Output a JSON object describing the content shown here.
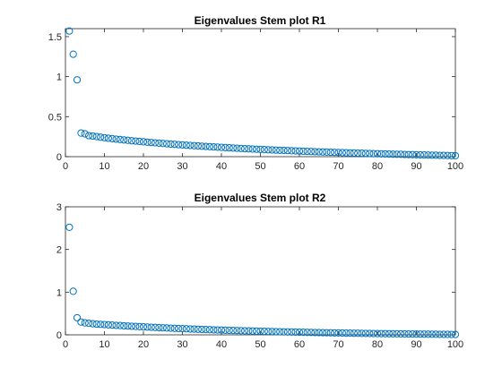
{
  "chart_data": [
    {
      "type": "scatter",
      "title": "Eigenvalues Stem plot R1",
      "xlabel": "",
      "ylabel": "",
      "xlim": [
        0,
        100
      ],
      "ylim": [
        0,
        1.6
      ],
      "xticks": [
        0,
        10,
        20,
        30,
        40,
        50,
        60,
        70,
        80,
        90,
        100
      ],
      "yticks": [
        0,
        0.5,
        1,
        1.5
      ],
      "ytick_labels": [
        "0",
        "0.5",
        "1",
        "1.5"
      ],
      "grid": false,
      "marker": "circle",
      "color": "#0072BD",
      "x": [
        1,
        2,
        3,
        4,
        5,
        6,
        7,
        8,
        9,
        10,
        11,
        12,
        13,
        14,
        15,
        16,
        17,
        18,
        19,
        20,
        21,
        22,
        23,
        24,
        25,
        26,
        27,
        28,
        29,
        30,
        31,
        32,
        33,
        34,
        35,
        36,
        37,
        38,
        39,
        40,
        41,
        42,
        43,
        44,
        45,
        46,
        47,
        48,
        49,
        50,
        51,
        52,
        53,
        54,
        55,
        56,
        57,
        58,
        59,
        60,
        61,
        62,
        63,
        64,
        65,
        66,
        67,
        68,
        69,
        70,
        71,
        72,
        73,
        74,
        75,
        76,
        77,
        78,
        79,
        80,
        81,
        82,
        83,
        84,
        85,
        86,
        87,
        88,
        89,
        90,
        91,
        92,
        93,
        94,
        95,
        96,
        97,
        98,
        99,
        100
      ],
      "y": [
        1.57,
        1.28,
        0.96,
        0.295,
        0.285,
        0.262,
        0.258,
        0.25,
        0.243,
        0.237,
        0.23,
        0.225,
        0.219,
        0.214,
        0.209,
        0.204,
        0.199,
        0.195,
        0.19,
        0.186,
        0.181,
        0.177,
        0.173,
        0.169,
        0.165,
        0.161,
        0.157,
        0.154,
        0.15,
        0.147,
        0.143,
        0.14,
        0.137,
        0.134,
        0.131,
        0.128,
        0.125,
        0.122,
        0.119,
        0.116,
        0.113,
        0.111,
        0.108,
        0.105,
        0.103,
        0.1,
        0.098,
        0.095,
        0.093,
        0.091,
        0.088,
        0.086,
        0.084,
        0.082,
        0.08,
        0.078,
        0.076,
        0.074,
        0.072,
        0.07,
        0.068,
        0.066,
        0.064,
        0.062,
        0.061,
        0.059,
        0.057,
        0.055,
        0.054,
        0.052,
        0.05,
        0.049,
        0.047,
        0.046,
        0.044,
        0.043,
        0.041,
        0.04,
        0.038,
        0.037,
        0.035,
        0.034,
        0.033,
        0.031,
        0.03,
        0.029,
        0.027,
        0.026,
        0.025,
        0.024,
        0.022,
        0.021,
        0.02,
        0.019,
        0.018,
        0.016,
        0.015,
        0.014,
        0.013,
        0.012
      ]
    },
    {
      "type": "scatter",
      "title": "Eigenvalues Stem plot R2",
      "xlabel": "",
      "ylabel": "",
      "xlim": [
        0,
        100
      ],
      "ylim": [
        0,
        3
      ],
      "xticks": [
        0,
        10,
        20,
        30,
        40,
        50,
        60,
        70,
        80,
        90,
        100
      ],
      "yticks": [
        0,
        1,
        2,
        3
      ],
      "ytick_labels": [
        "0",
        "1",
        "2",
        "3"
      ],
      "grid": false,
      "marker": "circle",
      "color": "#0072BD",
      "x": [
        1,
        2,
        3,
        4,
        5,
        6,
        7,
        8,
        9,
        10,
        11,
        12,
        13,
        14,
        15,
        16,
        17,
        18,
        19,
        20,
        21,
        22,
        23,
        24,
        25,
        26,
        27,
        28,
        29,
        30,
        31,
        32,
        33,
        34,
        35,
        36,
        37,
        38,
        39,
        40,
        41,
        42,
        43,
        44,
        45,
        46,
        47,
        48,
        49,
        50,
        51,
        52,
        53,
        54,
        55,
        56,
        57,
        58,
        59,
        60,
        61,
        62,
        63,
        64,
        65,
        66,
        67,
        68,
        69,
        70,
        71,
        72,
        73,
        74,
        75,
        76,
        77,
        78,
        79,
        80,
        81,
        82,
        83,
        84,
        85,
        86,
        87,
        88,
        89,
        90,
        91,
        92,
        93,
        94,
        95,
        96,
        97,
        98,
        99,
        100
      ],
      "y": [
        2.52,
        1.02,
        0.4,
        0.3,
        0.28,
        0.27,
        0.26,
        0.25,
        0.245,
        0.24,
        0.234,
        0.228,
        0.222,
        0.217,
        0.211,
        0.206,
        0.201,
        0.196,
        0.191,
        0.186,
        0.182,
        0.177,
        0.173,
        0.168,
        0.164,
        0.16,
        0.156,
        0.152,
        0.148,
        0.144,
        0.141,
        0.137,
        0.134,
        0.13,
        0.127,
        0.124,
        0.12,
        0.117,
        0.114,
        0.111,
        0.108,
        0.105,
        0.102,
        0.1,
        0.097,
        0.094,
        0.092,
        0.089,
        0.086,
        0.084,
        0.081,
        0.079,
        0.077,
        0.074,
        0.072,
        0.07,
        0.068,
        0.066,
        0.064,
        0.062,
        0.06,
        0.058,
        0.056,
        0.054,
        0.052,
        0.05,
        0.049,
        0.047,
        0.045,
        0.044,
        0.042,
        0.04,
        0.039,
        0.037,
        0.036,
        0.034,
        0.033,
        0.032,
        0.03,
        0.029,
        0.028,
        0.026,
        0.025,
        0.024,
        0.023,
        0.022,
        0.021,
        0.02,
        0.019,
        0.018,
        0.017,
        0.016,
        0.015,
        0.014,
        0.013,
        0.012,
        0.011,
        0.01,
        0.009,
        0.008
      ]
    }
  ]
}
